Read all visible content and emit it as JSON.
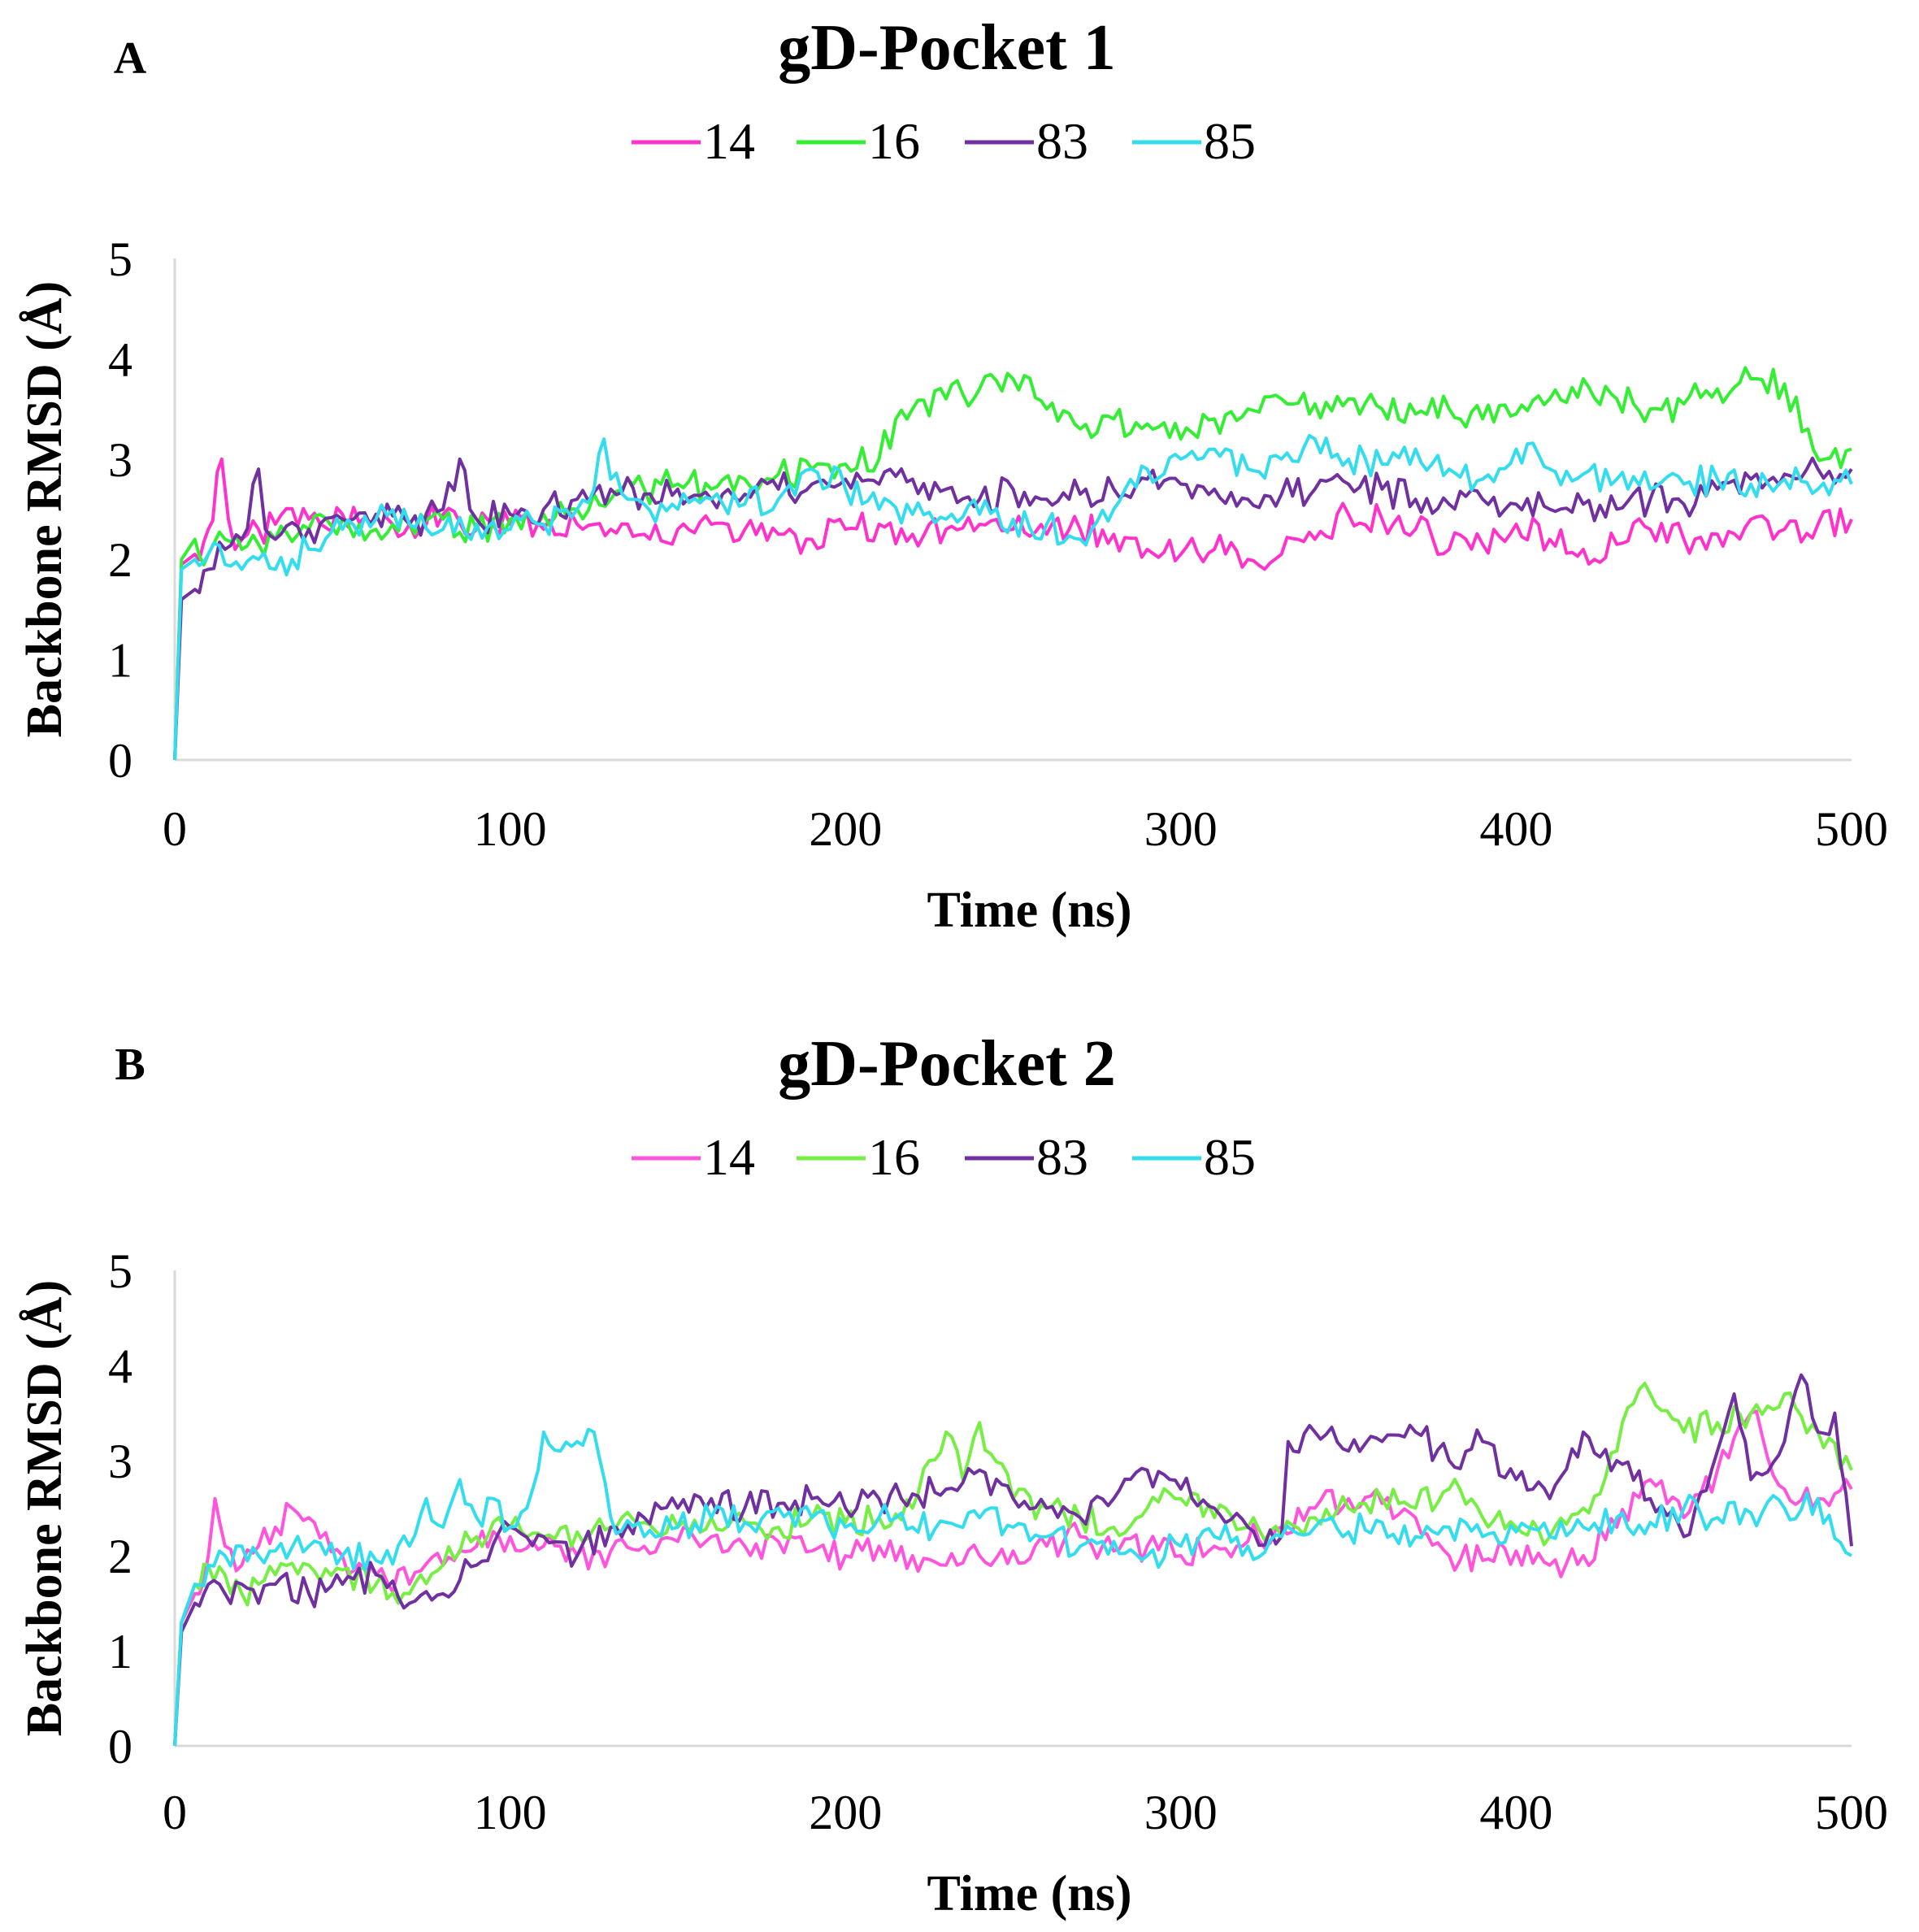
{
  "chart_data": [
    {
      "type": "line",
      "panel": "A",
      "title": "gD-Pocket 1",
      "xlabel": "Time (ns)",
      "ylabel": "Backbone RMSD (Å)",
      "xlim": [
        0,
        500
      ],
      "ylim": [
        0,
        5
      ],
      "xticks": [
        "0",
        "100",
        "200",
        "300",
        "400",
        "500"
      ],
      "yticks": [
        "0",
        "1",
        "2",
        "3",
        "4",
        "5"
      ],
      "grid": false,
      "legend_position": "top",
      "series": [
        {
          "name": "14",
          "color": "#ff33cc",
          "x": [
            0,
            2,
            6,
            10,
            14,
            16,
            18,
            20,
            25,
            30,
            40,
            50,
            60,
            70,
            80,
            90,
            100,
            110,
            120,
            130,
            140,
            150,
            160,
            170,
            180,
            190,
            200,
            210,
            220,
            230,
            240,
            250,
            260,
            270,
            280,
            290,
            300,
            310,
            320,
            330,
            340,
            350,
            360,
            370,
            380,
            390,
            400,
            410,
            420,
            430,
            440,
            450,
            460,
            470,
            480,
            490,
            500
          ],
          "y": [
            0,
            1.95,
            2.05,
            2.3,
            3.0,
            2.4,
            2.1,
            2.2,
            2.3,
            2.35,
            2.4,
            2.45,
            2.4,
            2.35,
            2.45,
            2.3,
            2.35,
            2.3,
            2.35,
            2.3,
            2.25,
            2.3,
            2.35,
            2.3,
            2.25,
            2.2,
            2.3,
            2.35,
            2.25,
            2.3,
            2.35,
            2.3,
            2.25,
            2.3,
            2.25,
            2.1,
            2.05,
            2.1,
            2.0,
            2.05,
            2.2,
            2.45,
            2.4,
            2.3,
            2.1,
            2.15,
            2.35,
            2.2,
            2.1,
            2.15,
            2.3,
            2.2,
            2.25,
            2.4,
            2.3,
            2.35,
            2.4
          ]
        },
        {
          "name": "16",
          "color": "#33ee33",
          "x": [
            0,
            2,
            6,
            10,
            15,
            20,
            25,
            30,
            40,
            50,
            60,
            70,
            80,
            90,
            100,
            110,
            120,
            130,
            140,
            150,
            160,
            170,
            180,
            190,
            200,
            210,
            215,
            220,
            230,
            240,
            250,
            260,
            270,
            280,
            290,
            300,
            310,
            320,
            330,
            340,
            350,
            360,
            370,
            380,
            390,
            400,
            410,
            420,
            430,
            440,
            450,
            460,
            470,
            480,
            487,
            492,
            500
          ],
          "y": [
            0,
            2.0,
            2.2,
            2.05,
            2.2,
            2.1,
            2.15,
            2.2,
            2.3,
            2.4,
            2.3,
            2.35,
            2.4,
            2.3,
            2.4,
            2.45,
            2.5,
            2.6,
            2.7,
            2.75,
            2.7,
            2.8,
            2.85,
            2.9,
            2.95,
            3.0,
            3.4,
            3.5,
            3.6,
            3.7,
            3.8,
            3.5,
            3.3,
            3.4,
            3.35,
            3.2,
            3.4,
            3.5,
            3.6,
            3.55,
            3.6,
            3.5,
            3.45,
            3.5,
            3.4,
            3.45,
            3.6,
            3.8,
            3.6,
            3.5,
            3.55,
            3.7,
            3.8,
            3.75,
            3.3,
            3.0,
            3.1
          ]
        },
        {
          "name": "83",
          "color": "#7030a0",
          "x": [
            0,
            2,
            6,
            10,
            15,
            20,
            25,
            27,
            30,
            40,
            50,
            60,
            70,
            80,
            85,
            88,
            90,
            100,
            110,
            120,
            130,
            140,
            150,
            160,
            170,
            180,
            190,
            200,
            210,
            220,
            230,
            240,
            250,
            260,
            270,
            280,
            290,
            300,
            310,
            320,
            330,
            340,
            350,
            360,
            370,
            380,
            390,
            400,
            410,
            420,
            430,
            440,
            450,
            460,
            470,
            480,
            490,
            500
          ],
          "y": [
            0,
            1.6,
            1.7,
            1.9,
            2.1,
            2.2,
            2.9,
            2.3,
            2.2,
            2.3,
            2.4,
            2.45,
            2.35,
            2.5,
            3.0,
            2.5,
            2.4,
            2.45,
            2.5,
            2.6,
            2.7,
            2.65,
            2.7,
            2.6,
            2.65,
            2.7,
            2.75,
            2.8,
            2.75,
            2.8,
            2.7,
            2.6,
            2.7,
            2.6,
            2.65,
            2.7,
            2.8,
            2.75,
            2.7,
            2.6,
            2.65,
            2.7,
            2.75,
            2.7,
            2.6,
            2.55,
            2.6,
            2.55,
            2.5,
            2.55,
            2.5,
            2.6,
            2.55,
            2.7,
            2.8,
            2.85,
            2.9,
            2.9
          ]
        },
        {
          "name": "85",
          "color": "#33ddee",
          "x": [
            0,
            2,
            6,
            10,
            15,
            20,
            25,
            30,
            35,
            40,
            50,
            60,
            70,
            80,
            90,
            100,
            110,
            120,
            125,
            128,
            130,
            135,
            140,
            150,
            160,
            170,
            180,
            190,
            200,
            210,
            220,
            230,
            240,
            250,
            260,
            270,
            280,
            290,
            300,
            310,
            320,
            330,
            340,
            350,
            360,
            370,
            380,
            390,
            400,
            410,
            420,
            430,
            440,
            450,
            460,
            470,
            480,
            490,
            500
          ],
          "y": [
            0,
            1.9,
            2.0,
            2.05,
            1.95,
            1.9,
            2.0,
            1.9,
            2.0,
            2.1,
            2.3,
            2.4,
            2.35,
            2.3,
            2.35,
            2.3,
            2.35,
            2.5,
            2.7,
            3.2,
            2.8,
            2.6,
            2.55,
            2.5,
            2.6,
            2.55,
            2.6,
            2.9,
            2.7,
            2.5,
            2.45,
            2.4,
            2.45,
            2.4,
            2.35,
            2.2,
            2.5,
            2.9,
            3.0,
            3.1,
            2.9,
            3.0,
            3.2,
            3.0,
            2.95,
            3.1,
            2.9,
            2.8,
            3.1,
            2.9,
            2.85,
            2.8,
            2.7,
            2.75,
            2.8,
            2.75,
            2.8,
            2.7,
            2.75
          ]
        }
      ]
    },
    {
      "type": "line",
      "panel": "B",
      "title": "gD-Pocket 2",
      "xlabel": "Time (ns)",
      "ylabel": "Backbone RMSD (Å)",
      "xlim": [
        0,
        500
      ],
      "ylim": [
        0,
        5
      ],
      "xticks": [
        "0",
        "100",
        "200",
        "300",
        "400",
        "500"
      ],
      "yticks": [
        "0",
        "1",
        "2",
        "3",
        "4",
        "5"
      ],
      "grid": false,
      "legend_position": "top",
      "series": [
        {
          "name": "14",
          "color": "#ff55dd",
          "x": [
            0,
            2,
            6,
            10,
            12,
            15,
            20,
            25,
            30,
            35,
            40,
            50,
            60,
            70,
            80,
            90,
            100,
            110,
            120,
            130,
            140,
            150,
            160,
            170,
            180,
            190,
            200,
            210,
            220,
            230,
            240,
            250,
            260,
            270,
            280,
            290,
            300,
            310,
            320,
            330,
            340,
            350,
            360,
            370,
            380,
            390,
            400,
            410,
            420,
            430,
            440,
            450,
            460,
            470,
            480,
            490,
            500
          ],
          "y": [
            0,
            1.3,
            1.6,
            2.0,
            2.6,
            2.1,
            1.9,
            2.1,
            2.3,
            2.5,
            2.4,
            2.0,
            1.8,
            1.7,
            1.9,
            2.1,
            2.2,
            2.1,
            2.0,
            2.05,
            2.1,
            2.15,
            2.2,
            2.1,
            2.15,
            2.05,
            2.0,
            2.1,
            2.0,
            1.9,
            2.0,
            2.05,
            2.1,
            2.2,
            2.05,
            2.1,
            2.0,
            2.1,
            2.15,
            2.3,
            2.5,
            2.6,
            2.55,
            2.4,
            2.0,
            1.95,
            2.05,
            1.9,
            2.0,
            2.3,
            2.8,
            2.4,
            2.9,
            3.5,
            2.7,
            2.6,
            2.7
          ]
        },
        {
          "name": "16",
          "color": "#77ee44",
          "x": [
            0,
            2,
            6,
            10,
            15,
            20,
            25,
            30,
            40,
            50,
            60,
            70,
            80,
            90,
            100,
            110,
            120,
            130,
            140,
            150,
            160,
            170,
            180,
            190,
            200,
            210,
            220,
            225,
            230,
            235,
            240,
            250,
            260,
            270,
            280,
            290,
            300,
            310,
            320,
            330,
            340,
            350,
            360,
            370,
            380,
            390,
            400,
            410,
            420,
            430,
            435,
            440,
            450,
            460,
            470,
            480,
            490,
            500
          ],
          "y": [
            0,
            1.3,
            1.7,
            1.9,
            1.8,
            1.6,
            1.7,
            1.8,
            1.9,
            1.85,
            1.7,
            1.6,
            1.9,
            2.2,
            2.3,
            2.2,
            2.25,
            2.3,
            2.35,
            2.3,
            2.4,
            2.35,
            2.3,
            2.4,
            2.35,
            2.4,
            2.5,
            3.0,
            3.3,
            2.8,
            3.4,
            2.6,
            2.5,
            2.4,
            2.3,
            2.5,
            2.6,
            2.4,
            2.3,
            2.2,
            2.4,
            2.5,
            2.6,
            2.5,
            2.7,
            2.4,
            2.3,
            2.2,
            2.5,
            3.1,
            3.6,
            3.7,
            3.3,
            3.4,
            3.5,
            3.7,
            3.3,
            2.9
          ]
        },
        {
          "name": "83",
          "color": "#7030a0",
          "x": [
            0,
            2,
            6,
            10,
            15,
            20,
            25,
            30,
            40,
            50,
            60,
            70,
            80,
            90,
            100,
            110,
            120,
            130,
            140,
            150,
            160,
            170,
            180,
            190,
            200,
            210,
            220,
            230,
            240,
            250,
            260,
            270,
            280,
            290,
            300,
            310,
            320,
            330,
            332,
            340,
            350,
            360,
            370,
            380,
            390,
            400,
            410,
            420,
            430,
            440,
            450,
            460,
            465,
            470,
            480,
            485,
            490,
            495,
            500
          ],
          "y": [
            0,
            1.2,
            1.5,
            1.7,
            1.6,
            1.7,
            1.5,
            1.7,
            1.6,
            1.7,
            1.8,
            1.5,
            1.6,
            1.9,
            2.3,
            2.2,
            2.0,
            2.3,
            2.4,
            2.5,
            2.6,
            2.5,
            2.55,
            2.6,
            2.5,
            2.6,
            2.65,
            2.7,
            2.9,
            2.6,
            2.5,
            2.4,
            2.6,
            2.9,
            2.7,
            2.5,
            2.3,
            2.2,
            3.2,
            3.3,
            3.1,
            3.2,
            3.3,
            3.0,
            3.2,
            2.8,
            2.6,
            3.3,
            3.0,
            2.6,
            2.2,
            3.1,
            3.7,
            2.8,
            3.2,
            3.9,
            3.3,
            3.5,
            2.1
          ]
        },
        {
          "name": "85",
          "color": "#33ddee",
          "x": [
            0,
            2,
            6,
            10,
            15,
            20,
            25,
            30,
            40,
            50,
            60,
            70,
            75,
            80,
            85,
            90,
            95,
            100,
            105,
            110,
            115,
            120,
            125,
            130,
            140,
            150,
            160,
            170,
            180,
            190,
            200,
            210,
            220,
            230,
            240,
            250,
            260,
            270,
            280,
            290,
            300,
            310,
            320,
            330,
            340,
            350,
            360,
            370,
            380,
            390,
            400,
            410,
            420,
            430,
            440,
            450,
            460,
            470,
            480,
            490,
            500
          ],
          "y": [
            0,
            1.3,
            1.7,
            1.9,
            2.0,
            2.1,
            2.0,
            2.05,
            2.1,
            2.0,
            1.95,
            2.1,
            2.6,
            2.3,
            2.8,
            2.4,
            2.6,
            2.3,
            2.5,
            3.3,
            3.1,
            3.2,
            3.3,
            2.4,
            2.2,
            2.3,
            2.4,
            2.35,
            2.5,
            2.4,
            2.3,
            2.4,
            2.3,
            2.35,
            2.4,
            2.3,
            2.2,
            2.1,
            2.15,
            2.0,
            2.1,
            2.2,
            2.1,
            2.2,
            2.3,
            2.25,
            2.35,
            2.2,
            2.3,
            2.2,
            2.25,
            2.2,
            2.3,
            2.4,
            2.35,
            2.5,
            2.4,
            2.45,
            2.5,
            2.6,
            2.0
          ]
        }
      ]
    }
  ]
}
